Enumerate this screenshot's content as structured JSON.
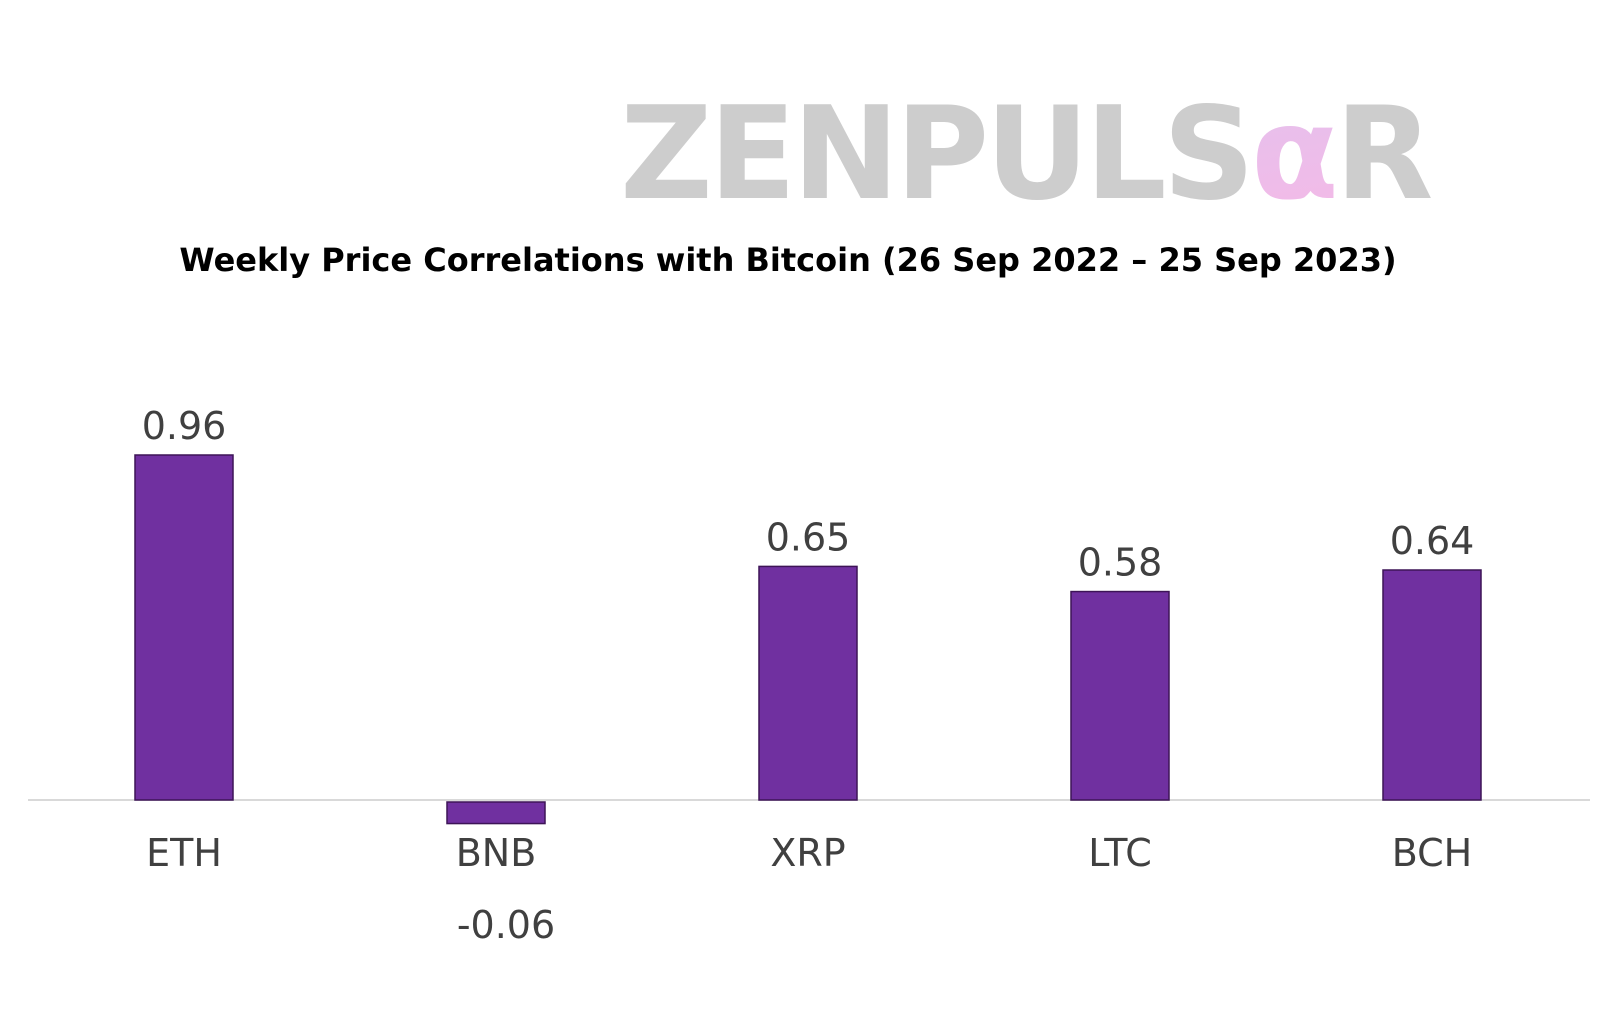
{
  "brand": {
    "logo_text_main": "ZENPULS",
    "logo_text_accent": "α",
    "logo_text_end": "R",
    "logo_color": "#cdcdcd",
    "accent_gradient": [
      "#d8c8f2",
      "#f6b8e6"
    ]
  },
  "chart_data": {
    "type": "bar",
    "title": "Weekly Price Correlations with Bitcoin (26 Sep 2022 – 25 Sep 2023)",
    "categories": [
      "ETH",
      "BNB",
      "XRP",
      "LTC",
      "BCH"
    ],
    "values": [
      0.96,
      -0.06,
      0.65,
      0.58,
      0.64
    ],
    "value_labels": [
      "0.96",
      "-0.06",
      "0.65",
      "0.58",
      "0.64"
    ],
    "xlabel": "",
    "ylabel": "",
    "ylim": [
      -0.06,
      0.96
    ],
    "grid": false,
    "legend": "none",
    "bar_color": "#7030a0",
    "bar_edge_color": "#3d1457",
    "label_color": "#404040",
    "axis_color": "#d9d9d9"
  }
}
